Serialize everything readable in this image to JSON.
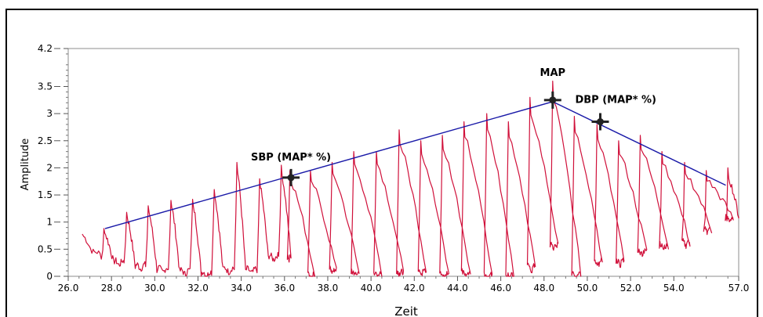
{
  "chart_data": {
    "type": "line",
    "title": "",
    "xlabel": "Zeit",
    "ylabel": "Amplitude",
    "xlim": [
      26.0,
      57.0
    ],
    "ylim": [
      0.0,
      4.2
    ],
    "x_ticks": [
      "26.0",
      "28.0",
      "30.0",
      "32.0",
      "34.0",
      "36.0",
      "38.0",
      "40.0",
      "42.0",
      "44.0",
      "46.0",
      "48.0",
      "50.0",
      "52.0",
      "54.0",
      "57.0"
    ],
    "x_tick_values": [
      26.0,
      28.0,
      30.0,
      32.0,
      34.0,
      36.0,
      38.0,
      40.0,
      42.0,
      44.0,
      46.0,
      48.0,
      50.0,
      52.0,
      54.0,
      57.0
    ],
    "y_ticks": [
      "0",
      "0.5",
      "1",
      "1.5",
      "2",
      "2.5",
      "3",
      "3.5",
      "4.2"
    ],
    "y_tick_values": [
      0,
      0.5,
      1,
      1.5,
      2,
      2.5,
      3,
      3.5,
      4.2
    ],
    "grid": false,
    "series": [
      {
        "kind": "pulse-signal",
        "color": "#d0103a",
        "peaks": [
          {
            "x": 27.65,
            "y": 0.88
          },
          {
            "x": 28.7,
            "y": 1.18
          },
          {
            "x": 29.7,
            "y": 1.3
          },
          {
            "x": 30.75,
            "y": 1.4
          },
          {
            "x": 31.75,
            "y": 1.42
          },
          {
            "x": 32.75,
            "y": 1.6
          },
          {
            "x": 33.8,
            "y": 2.1
          },
          {
            "x": 34.85,
            "y": 1.8
          },
          {
            "x": 35.85,
            "y": 2.05
          },
          {
            "x": 36.25,
            "y": 1.95
          },
          {
            "x": 37.2,
            "y": 1.95
          },
          {
            "x": 38.2,
            "y": 2.1
          },
          {
            "x": 39.2,
            "y": 2.3
          },
          {
            "x": 40.25,
            "y": 2.3
          },
          {
            "x": 41.3,
            "y": 2.7
          },
          {
            "x": 42.3,
            "y": 2.5
          },
          {
            "x": 43.3,
            "y": 2.6
          },
          {
            "x": 44.3,
            "y": 2.85
          },
          {
            "x": 45.35,
            "y": 3.0
          },
          {
            "x": 46.35,
            "y": 2.85
          },
          {
            "x": 47.35,
            "y": 3.3
          },
          {
            "x": 48.4,
            "y": 3.6
          },
          {
            "x": 49.4,
            "y": 2.95
          },
          {
            "x": 50.45,
            "y": 2.8
          },
          {
            "x": 51.45,
            "y": 2.5
          },
          {
            "x": 52.45,
            "y": 2.6
          },
          {
            "x": 53.45,
            "y": 2.3
          },
          {
            "x": 54.5,
            "y": 2.1
          },
          {
            "x": 55.5,
            "y": 1.95
          },
          {
            "x": 56.5,
            "y": 2.0
          }
        ],
        "troughs": [
          {
            "x": 28.1,
            "y": 0.25
          },
          {
            "x": 29.1,
            "y": 0.18
          },
          {
            "x": 30.1,
            "y": 0.12
          },
          {
            "x": 31.15,
            "y": 0.08
          },
          {
            "x": 32.15,
            "y": 0.05
          },
          {
            "x": 33.15,
            "y": 0.12
          },
          {
            "x": 34.2,
            "y": 0.1
          },
          {
            "x": 35.25,
            "y": 0.35
          },
          {
            "x": 36.3,
            "y": 0.35
          },
          {
            "x": 37.4,
            "y": 0.0
          },
          {
            "x": 38.4,
            "y": 0.1
          },
          {
            "x": 39.45,
            "y": 0.05
          },
          {
            "x": 40.5,
            "y": 0.05
          },
          {
            "x": 41.5,
            "y": 0.05
          },
          {
            "x": 42.55,
            "y": 0.1
          },
          {
            "x": 43.6,
            "y": 0.02
          },
          {
            "x": 44.6,
            "y": 0.05
          },
          {
            "x": 45.6,
            "y": 0.0
          },
          {
            "x": 46.6,
            "y": 0.0
          },
          {
            "x": 47.6,
            "y": 0.15
          },
          {
            "x": 48.65,
            "y": 0.55
          },
          {
            "x": 49.7,
            "y": 0.05
          },
          {
            "x": 50.7,
            "y": 0.25
          },
          {
            "x": 51.7,
            "y": 0.25
          },
          {
            "x": 52.75,
            "y": 0.45
          },
          {
            "x": 53.75,
            "y": 0.55
          },
          {
            "x": 54.75,
            "y": 0.6
          },
          {
            "x": 55.75,
            "y": 0.85
          },
          {
            "x": 56.75,
            "y": 1.05
          }
        ],
        "start": {
          "x": 26.65,
          "y": 0.78
        },
        "end": {
          "x": 57.0,
          "y": 1.1
        }
      },
      {
        "kind": "envelope",
        "color": "#1a1aa8",
        "points": [
          {
            "x": 27.7,
            "y": 0.88
          },
          {
            "x": 48.4,
            "y": 3.22
          },
          {
            "x": 56.4,
            "y": 1.68
          }
        ]
      }
    ],
    "markers": [
      {
        "label": "SBP (MAP* %)",
        "x": 36.3,
        "y": 1.82,
        "anchor": "above"
      },
      {
        "label": "MAP",
        "x": 48.4,
        "y": 3.25,
        "anchor": "above"
      },
      {
        "label": "DBP (MAP* %)",
        "x": 50.6,
        "y": 2.85,
        "anchor": "above-right"
      }
    ]
  }
}
